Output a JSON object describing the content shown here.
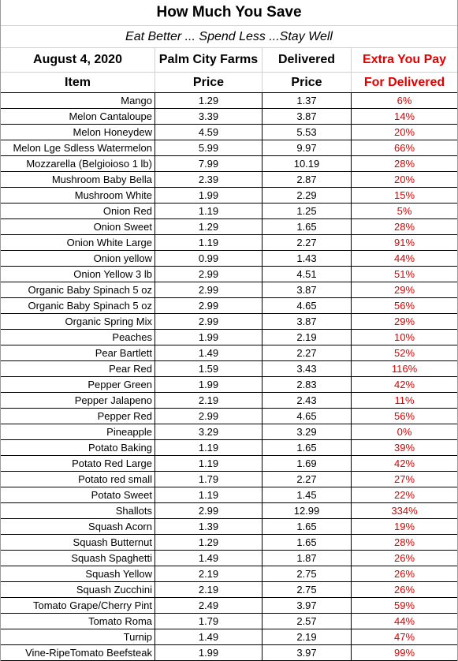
{
  "title": "How Much You Save",
  "subtitle": "Eat Better ... Spend Less ...Stay Well",
  "header": {
    "date": "August 4, 2020",
    "col2_top": "Palm City Farms",
    "col3_top": "Delivered",
    "col4_top": "Extra You Pay",
    "col1_bottom": "Item",
    "col2_bottom": "Price",
    "col3_bottom": "Price",
    "col4_bottom": "For Delivered"
  },
  "colors": {
    "accent_red": "#e00000",
    "grid_line": "#000000"
  },
  "rows": [
    {
      "item": "Mango",
      "pcf": "1.29",
      "delivered": "1.37",
      "extra": "6%"
    },
    {
      "item": "Melon Cantaloupe",
      "pcf": "3.39",
      "delivered": "3.87",
      "extra": "14%"
    },
    {
      "item": "Melon Honeydew",
      "pcf": "4.59",
      "delivered": "5.53",
      "extra": "20%"
    },
    {
      "item": "Melon Lge Sdless Watermelon",
      "pcf": "5.99",
      "delivered": "9.97",
      "extra": "66%"
    },
    {
      "item": "Mozzarella (Belgioioso  1 lb)",
      "pcf": "7.99",
      "delivered": "10.19",
      "extra": "28%"
    },
    {
      "item": "Mushroom Baby Bella",
      "pcf": "2.39",
      "delivered": "2.87",
      "extra": "20%"
    },
    {
      "item": "Mushroom White",
      "pcf": "1.99",
      "delivered": "2.29",
      "extra": "15%"
    },
    {
      "item": "Onion Red",
      "pcf": "1.19",
      "delivered": "1.25",
      "extra": "5%"
    },
    {
      "item": "Onion Sweet",
      "pcf": "1.29",
      "delivered": "1.65",
      "extra": "28%"
    },
    {
      "item": "Onion White Large",
      "pcf": "1.19",
      "delivered": "2.27",
      "extra": "91%"
    },
    {
      "item": "Onion yellow",
      "pcf": "0.99",
      "delivered": "1.43",
      "extra": "44%"
    },
    {
      "item": "Onion Yellow 3 lb",
      "pcf": "2.99",
      "delivered": "4.51",
      "extra": "51%"
    },
    {
      "item": "Organic Baby Spinach 5 oz",
      "pcf": "2.99",
      "delivered": "3.87",
      "extra": "29%"
    },
    {
      "item": "Organic Baby Spinach 5 oz",
      "pcf": "2.99",
      "delivered": "4.65",
      "extra": "56%"
    },
    {
      "item": "Organic Spring Mix",
      "pcf": "2.99",
      "delivered": "3.87",
      "extra": "29%"
    },
    {
      "item": "Peaches",
      "pcf": "1.99",
      "delivered": "2.19",
      "extra": "10%"
    },
    {
      "item": "Pear Bartlett",
      "pcf": "1.49",
      "delivered": "2.27",
      "extra": "52%"
    },
    {
      "item": "Pear Red",
      "pcf": "1.59",
      "delivered": "3.43",
      "extra": "116%"
    },
    {
      "item": "Pepper Green",
      "pcf": "1.99",
      "delivered": "2.83",
      "extra": "42%"
    },
    {
      "item": "Pepper Jalapeno",
      "pcf": "2.19",
      "delivered": "2.43",
      "extra": "11%"
    },
    {
      "item": "Pepper Red",
      "pcf": "2.99",
      "delivered": "4.65",
      "extra": "56%"
    },
    {
      "item": "Pineapple",
      "pcf": "3.29",
      "delivered": "3.29",
      "extra": "0%"
    },
    {
      "item": "Potato Baking",
      "pcf": "1.19",
      "delivered": "1.65",
      "extra": "39%"
    },
    {
      "item": "Potato Red Large",
      "pcf": "1.19",
      "delivered": "1.69",
      "extra": "42%"
    },
    {
      "item": "Potato red small",
      "pcf": "1.79",
      "delivered": "2.27",
      "extra": "27%"
    },
    {
      "item": "Potato Sweet",
      "pcf": "1.19",
      "delivered": "1.45",
      "extra": "22%"
    },
    {
      "item": "Shallots",
      "pcf": "2.99",
      "delivered": "12.99",
      "extra": "334%"
    },
    {
      "item": "Squash Acorn",
      "pcf": "1.39",
      "delivered": "1.65",
      "extra": "19%"
    },
    {
      "item": "Squash Butternut",
      "pcf": "1.29",
      "delivered": "1.65",
      "extra": "28%"
    },
    {
      "item": "Squash Spaghetti",
      "pcf": "1.49",
      "delivered": "1.87",
      "extra": "26%"
    },
    {
      "item": "Squash Yellow",
      "pcf": "2.19",
      "delivered": "2.75",
      "extra": "26%"
    },
    {
      "item": "Squash Zucchini",
      "pcf": "2.19",
      "delivered": "2.75",
      "extra": "26%"
    },
    {
      "item": "Tomato Grape/Cherry Pint",
      "pcf": "2.49",
      "delivered": "3.97",
      "extra": "59%"
    },
    {
      "item": "Tomato Roma",
      "pcf": "1.79",
      "delivered": "2.57",
      "extra": "44%"
    },
    {
      "item": "Turnip",
      "pcf": "1.49",
      "delivered": "2.19",
      "extra": "47%"
    },
    {
      "item": "Vine-RipeTomato Beefsteak",
      "pcf": "1.99",
      "delivered": "3.97",
      "extra": "99%"
    }
  ]
}
